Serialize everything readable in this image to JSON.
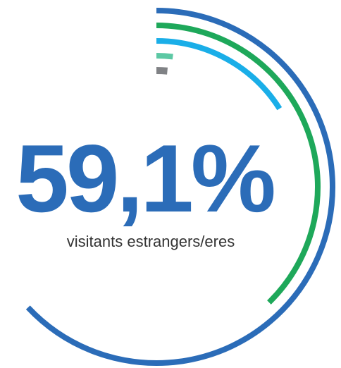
{
  "chart_data": {
    "type": "radial_bar",
    "title": "59,1%",
    "subtitle": "visitants estrangers/eres",
    "categories": [
      null,
      null,
      null,
      null,
      null
    ],
    "series": [
      {
        "name": null,
        "colors": [
          "#2b6cb8",
          "#1ea85a",
          "#1aaee8",
          "#5cc8a4",
          "#808285"
        ],
        "values": [
          63,
          37.7,
          16,
          2,
          1.5
        ]
      }
    ],
    "xlim": [
      0,
      100
    ]
  }
}
